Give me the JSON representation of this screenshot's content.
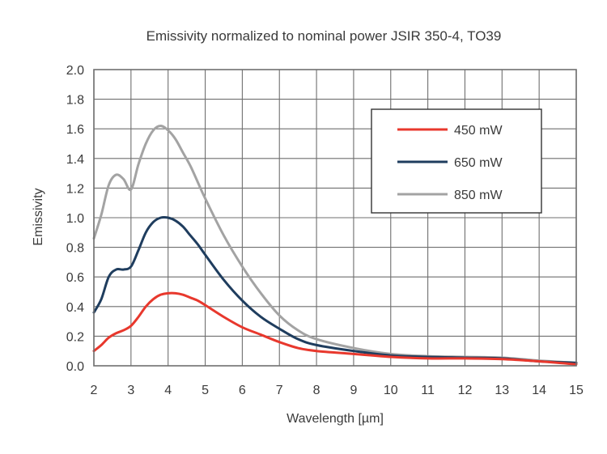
{
  "chart_data": {
    "type": "line",
    "title": "Emissivity normalized to nominal power JSIR 350-4, TO39",
    "xlabel": "Wavelength [µm]",
    "ylabel": "Emissivity",
    "xlim": [
      2,
      15
    ],
    "ylim": [
      0,
      2.0
    ],
    "xticks": [
      "2",
      "3",
      "4",
      "5",
      "6",
      "7",
      "8",
      "9",
      "10",
      "11",
      "12",
      "13",
      "14",
      "15"
    ],
    "yticks": [
      "0.0",
      "0.2",
      "0.4",
      "0.6",
      "0.8",
      "1.0",
      "1.2",
      "1.4",
      "1.6",
      "1.8",
      "2.0"
    ],
    "grid": true,
    "legend_position": "top-right",
    "series": [
      {
        "name": "450 mW",
        "color": "#e8382d",
        "points": [
          [
            2.0,
            0.1
          ],
          [
            2.2,
            0.14
          ],
          [
            2.4,
            0.19
          ],
          [
            2.6,
            0.22
          ],
          [
            2.8,
            0.24
          ],
          [
            3.0,
            0.27
          ],
          [
            3.2,
            0.33
          ],
          [
            3.4,
            0.4
          ],
          [
            3.6,
            0.45
          ],
          [
            3.8,
            0.48
          ],
          [
            4.0,
            0.49
          ],
          [
            4.2,
            0.49
          ],
          [
            4.4,
            0.48
          ],
          [
            4.6,
            0.46
          ],
          [
            4.8,
            0.44
          ],
          [
            5.0,
            0.41
          ],
          [
            5.5,
            0.33
          ],
          [
            6.0,
            0.26
          ],
          [
            6.5,
            0.21
          ],
          [
            7.0,
            0.16
          ],
          [
            7.5,
            0.12
          ],
          [
            8.0,
            0.1
          ],
          [
            9.0,
            0.08
          ],
          [
            10.0,
            0.06
          ],
          [
            11.0,
            0.05
          ],
          [
            12.0,
            0.05
          ],
          [
            13.0,
            0.045
          ],
          [
            14.0,
            0.03
          ],
          [
            15.0,
            0.01
          ]
        ]
      },
      {
        "name": "650 mW",
        "color": "#1f3d5e",
        "points": [
          [
            2.0,
            0.36
          ],
          [
            2.2,
            0.45
          ],
          [
            2.4,
            0.6
          ],
          [
            2.6,
            0.65
          ],
          [
            2.8,
            0.65
          ],
          [
            3.0,
            0.67
          ],
          [
            3.2,
            0.78
          ],
          [
            3.4,
            0.9
          ],
          [
            3.6,
            0.97
          ],
          [
            3.8,
            1.0
          ],
          [
            4.0,
            1.0
          ],
          [
            4.2,
            0.98
          ],
          [
            4.4,
            0.94
          ],
          [
            4.6,
            0.88
          ],
          [
            4.8,
            0.82
          ],
          [
            5.0,
            0.75
          ],
          [
            5.5,
            0.58
          ],
          [
            6.0,
            0.44
          ],
          [
            6.5,
            0.33
          ],
          [
            7.0,
            0.25
          ],
          [
            7.5,
            0.18
          ],
          [
            8.0,
            0.14
          ],
          [
            9.0,
            0.1
          ],
          [
            10.0,
            0.07
          ],
          [
            11.0,
            0.06
          ],
          [
            12.0,
            0.055
          ],
          [
            13.0,
            0.05
          ],
          [
            14.0,
            0.03
          ],
          [
            15.0,
            0.02
          ]
        ]
      },
      {
        "name": "850 mW",
        "color": "#a3a3a3",
        "points": [
          [
            2.0,
            0.86
          ],
          [
            2.2,
            1.02
          ],
          [
            2.4,
            1.22
          ],
          [
            2.6,
            1.29
          ],
          [
            2.8,
            1.26
          ],
          [
            3.0,
            1.19
          ],
          [
            3.2,
            1.36
          ],
          [
            3.4,
            1.5
          ],
          [
            3.6,
            1.59
          ],
          [
            3.8,
            1.62
          ],
          [
            4.0,
            1.59
          ],
          [
            4.2,
            1.53
          ],
          [
            4.4,
            1.44
          ],
          [
            4.6,
            1.35
          ],
          [
            4.8,
            1.24
          ],
          [
            5.0,
            1.13
          ],
          [
            5.5,
            0.88
          ],
          [
            6.0,
            0.67
          ],
          [
            6.5,
            0.49
          ],
          [
            7.0,
            0.34
          ],
          [
            7.5,
            0.24
          ],
          [
            8.0,
            0.18
          ],
          [
            9.0,
            0.12
          ],
          [
            10.0,
            0.08
          ],
          [
            11.0,
            0.065
          ],
          [
            12.0,
            0.06
          ],
          [
            13.0,
            0.055
          ],
          [
            14.0,
            0.035
          ],
          [
            15.0,
            0.02
          ]
        ]
      }
    ]
  }
}
